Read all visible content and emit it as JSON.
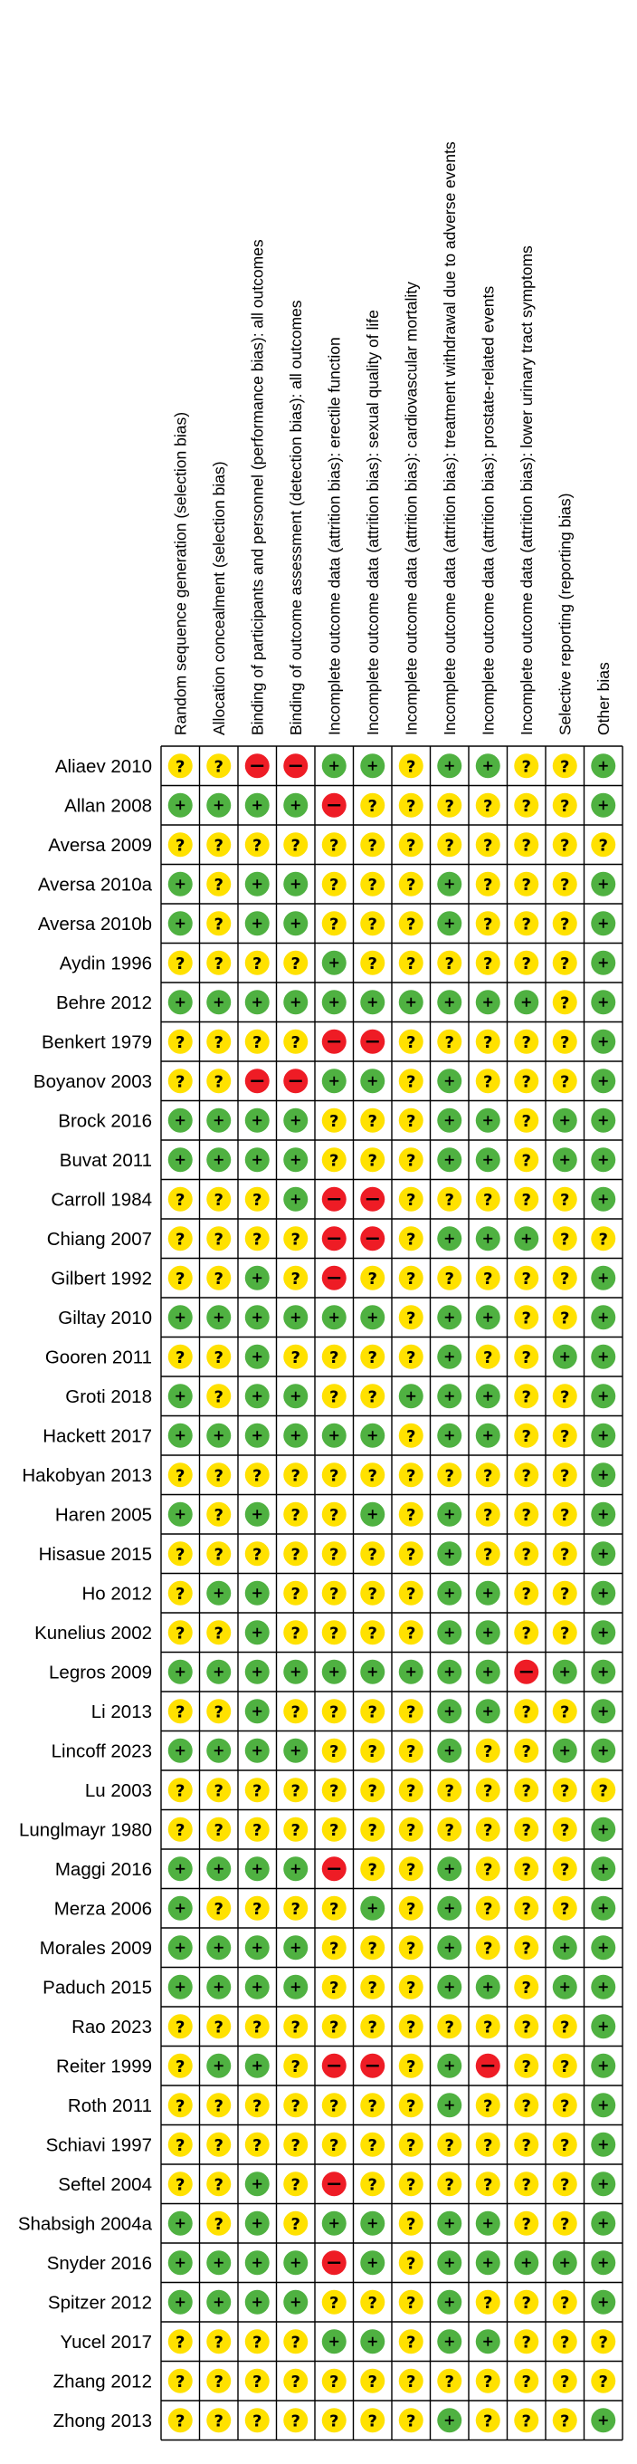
{
  "chart_data": {
    "type": "table",
    "legend": {
      "+": {
        "meaning": "low risk",
        "color": "#4fb141"
      },
      "?": {
        "meaning": "unclear risk",
        "color": "#ffe100"
      },
      "-": {
        "meaning": "high risk",
        "color": "#ee1c25"
      }
    },
    "domains": [
      "Random sequence generation (selection bias)",
      "Allocation concealment (selection bias)",
      "Binding of participants and personnel (performance bias): all outcomes",
      "Binding of outcome assessment (detection bias): all outcomes",
      "Incomplete outcome data (attrition bias): erectile function",
      "Incomplete outcome data (attrition bias): sexual quality of life",
      "Incomplete outcome data (attrition bias): cardiovascular mortality",
      "Incomplete outcome data (attrition bias): treatment withdrawal due to adverse events",
      "Incomplete outcome data (attrition bias): prostate-related events",
      "Incomplete outcome data (attrition bias): lower urinary tract symptoms",
      "Selective reporting (reporting bias)",
      "Other bias"
    ],
    "studies": [
      {
        "name": "Aliaev 2010",
        "ratings": [
          "?",
          "?",
          "-",
          "-",
          "+",
          "+",
          "?",
          "+",
          "+",
          "?",
          "?",
          "+"
        ]
      },
      {
        "name": "Allan 2008",
        "ratings": [
          "+",
          "+",
          "+",
          "+",
          "-",
          "?",
          "?",
          "?",
          "?",
          "?",
          "?",
          "+"
        ]
      },
      {
        "name": "Aversa 2009",
        "ratings": [
          "?",
          "?",
          "?",
          "?",
          "?",
          "?",
          "?",
          "?",
          "?",
          "?",
          "?",
          "?"
        ]
      },
      {
        "name": "Aversa 2010a",
        "ratings": [
          "+",
          "?",
          "+",
          "+",
          "?",
          "?",
          "?",
          "+",
          "?",
          "?",
          "?",
          "+"
        ]
      },
      {
        "name": "Aversa 2010b",
        "ratings": [
          "+",
          "?",
          "+",
          "+",
          "?",
          "?",
          "?",
          "+",
          "?",
          "?",
          "?",
          "+"
        ]
      },
      {
        "name": "Aydin 1996",
        "ratings": [
          "?",
          "?",
          "?",
          "?",
          "+",
          "?",
          "?",
          "?",
          "?",
          "?",
          "?",
          "+"
        ]
      },
      {
        "name": "Behre 2012",
        "ratings": [
          "+",
          "+",
          "+",
          "+",
          "+",
          "+",
          "+",
          "+",
          "+",
          "+",
          "?",
          "+"
        ]
      },
      {
        "name": "Benkert 1979",
        "ratings": [
          "?",
          "?",
          "?",
          "?",
          "-",
          "-",
          "?",
          "?",
          "?",
          "?",
          "?",
          "+"
        ]
      },
      {
        "name": "Boyanov 2003",
        "ratings": [
          "?",
          "?",
          "-",
          "-",
          "+",
          "+",
          "?",
          "+",
          "?",
          "?",
          "?",
          "+"
        ]
      },
      {
        "name": "Brock 2016",
        "ratings": [
          "+",
          "+",
          "+",
          "+",
          "?",
          "?",
          "?",
          "+",
          "+",
          "?",
          "+",
          "+"
        ]
      },
      {
        "name": "Buvat 2011",
        "ratings": [
          "+",
          "+",
          "+",
          "+",
          "?",
          "?",
          "?",
          "+",
          "+",
          "?",
          "+",
          "+"
        ]
      },
      {
        "name": "Carroll 1984",
        "ratings": [
          "?",
          "?",
          "?",
          "+",
          "-",
          "-",
          "?",
          "?",
          "?",
          "?",
          "?",
          "+"
        ]
      },
      {
        "name": "Chiang 2007",
        "ratings": [
          "?",
          "?",
          "?",
          "?",
          "-",
          "-",
          "?",
          "+",
          "+",
          "+",
          "?",
          "?"
        ]
      },
      {
        "name": "Gilbert 1992",
        "ratings": [
          "?",
          "?",
          "+",
          "?",
          "-",
          "?",
          "?",
          "?",
          "?",
          "?",
          "?",
          "+"
        ]
      },
      {
        "name": "Giltay 2010",
        "ratings": [
          "+",
          "+",
          "+",
          "+",
          "+",
          "+",
          "?",
          "+",
          "+",
          "?",
          "?",
          "+"
        ]
      },
      {
        "name": "Gooren 2011",
        "ratings": [
          "?",
          "?",
          "+",
          "?",
          "?",
          "?",
          "?",
          "+",
          "?",
          "?",
          "+",
          "+"
        ]
      },
      {
        "name": "Groti 2018",
        "ratings": [
          "+",
          "?",
          "+",
          "+",
          "?",
          "?",
          "+",
          "+",
          "+",
          "?",
          "?",
          "+"
        ]
      },
      {
        "name": "Hackett 2017",
        "ratings": [
          "+",
          "+",
          "+",
          "+",
          "+",
          "+",
          "?",
          "+",
          "+",
          "?",
          "?",
          "+"
        ]
      },
      {
        "name": "Hakobyan 2013",
        "ratings": [
          "?",
          "?",
          "?",
          "?",
          "?",
          "?",
          "?",
          "?",
          "?",
          "?",
          "?",
          "+"
        ]
      },
      {
        "name": "Haren 2005",
        "ratings": [
          "+",
          "?",
          "+",
          "?",
          "?",
          "+",
          "?",
          "+",
          "?",
          "?",
          "?",
          "+"
        ]
      },
      {
        "name": "Hisasue 2015",
        "ratings": [
          "?",
          "?",
          "?",
          "?",
          "?",
          "?",
          "?",
          "+",
          "?",
          "?",
          "?",
          "+"
        ]
      },
      {
        "name": "Ho 2012",
        "ratings": [
          "?",
          "+",
          "+",
          "?",
          "?",
          "?",
          "?",
          "+",
          "+",
          "?",
          "?",
          "+"
        ]
      },
      {
        "name": "Kunelius 2002",
        "ratings": [
          "?",
          "?",
          "+",
          "?",
          "?",
          "?",
          "?",
          "+",
          "+",
          "?",
          "?",
          "+"
        ]
      },
      {
        "name": "Legros 2009",
        "ratings": [
          "+",
          "+",
          "+",
          "+",
          "+",
          "+",
          "+",
          "+",
          "+",
          "-",
          "+",
          "+"
        ]
      },
      {
        "name": "Li 2013",
        "ratings": [
          "?",
          "?",
          "+",
          "?",
          "?",
          "?",
          "?",
          "+",
          "+",
          "?",
          "?",
          "+"
        ]
      },
      {
        "name": "Lincoff 2023",
        "ratings": [
          "+",
          "+",
          "+",
          "+",
          "?",
          "?",
          "?",
          "+",
          "?",
          "?",
          "+",
          "+"
        ]
      },
      {
        "name": "Lu 2003",
        "ratings": [
          "?",
          "?",
          "?",
          "?",
          "?",
          "?",
          "?",
          "?",
          "?",
          "?",
          "?",
          "?"
        ]
      },
      {
        "name": "Lunglmayr 1980",
        "ratings": [
          "?",
          "?",
          "?",
          "?",
          "?",
          "?",
          "?",
          "?",
          "?",
          "?",
          "?",
          "+"
        ]
      },
      {
        "name": "Maggi 2016",
        "ratings": [
          "+",
          "+",
          "+",
          "+",
          "-",
          "?",
          "?",
          "+",
          "?",
          "?",
          "?",
          "+"
        ]
      },
      {
        "name": "Merza 2006",
        "ratings": [
          "+",
          "?",
          "?",
          "?",
          "?",
          "+",
          "?",
          "+",
          "?",
          "?",
          "?",
          "+"
        ]
      },
      {
        "name": "Morales 2009",
        "ratings": [
          "+",
          "+",
          "+",
          "+",
          "?",
          "?",
          "?",
          "+",
          "?",
          "?",
          "+",
          "+"
        ]
      },
      {
        "name": "Paduch 2015",
        "ratings": [
          "+",
          "+",
          "+",
          "+",
          "?",
          "?",
          "?",
          "+",
          "+",
          "?",
          "+",
          "+"
        ]
      },
      {
        "name": "Rao 2023",
        "ratings": [
          "?",
          "?",
          "?",
          "?",
          "?",
          "?",
          "?",
          "?",
          "?",
          "?",
          "?",
          "+"
        ]
      },
      {
        "name": "Reiter 1999",
        "ratings": [
          "?",
          "+",
          "+",
          "?",
          "-",
          "-",
          "?",
          "+",
          "-",
          "?",
          "?",
          "+"
        ]
      },
      {
        "name": "Roth 2011",
        "ratings": [
          "?",
          "?",
          "?",
          "?",
          "?",
          "?",
          "?",
          "+",
          "?",
          "?",
          "?",
          "+"
        ]
      },
      {
        "name": "Schiavi 1997",
        "ratings": [
          "?",
          "?",
          "?",
          "?",
          "?",
          "?",
          "?",
          "?",
          "?",
          "?",
          "?",
          "+"
        ]
      },
      {
        "name": "Seftel 2004",
        "ratings": [
          "?",
          "?",
          "+",
          "?",
          "-",
          "?",
          "?",
          "?",
          "?",
          "?",
          "?",
          "+"
        ]
      },
      {
        "name": "Shabsigh 2004a",
        "ratings": [
          "+",
          "?",
          "+",
          "?",
          "+",
          "+",
          "?",
          "+",
          "+",
          "?",
          "?",
          "+"
        ]
      },
      {
        "name": "Snyder 2016",
        "ratings": [
          "+",
          "+",
          "+",
          "+",
          "-",
          "+",
          "?",
          "+",
          "+",
          "+",
          "+",
          "+"
        ]
      },
      {
        "name": "Spitzer 2012",
        "ratings": [
          "+",
          "+",
          "+",
          "+",
          "?",
          "?",
          "?",
          "+",
          "?",
          "?",
          "?",
          "+"
        ]
      },
      {
        "name": "Yucel 2017",
        "ratings": [
          "?",
          "?",
          "?",
          "?",
          "+",
          "+",
          "?",
          "+",
          "+",
          "?",
          "?",
          "?"
        ]
      },
      {
        "name": "Zhang 2012",
        "ratings": [
          "?",
          "?",
          "?",
          "?",
          "?",
          "?",
          "?",
          "?",
          "?",
          "?",
          "?",
          "?"
        ]
      },
      {
        "name": "Zhong 2013",
        "ratings": [
          "?",
          "?",
          "?",
          "?",
          "?",
          "?",
          "?",
          "+",
          "?",
          "?",
          "?",
          "+"
        ]
      }
    ]
  }
}
